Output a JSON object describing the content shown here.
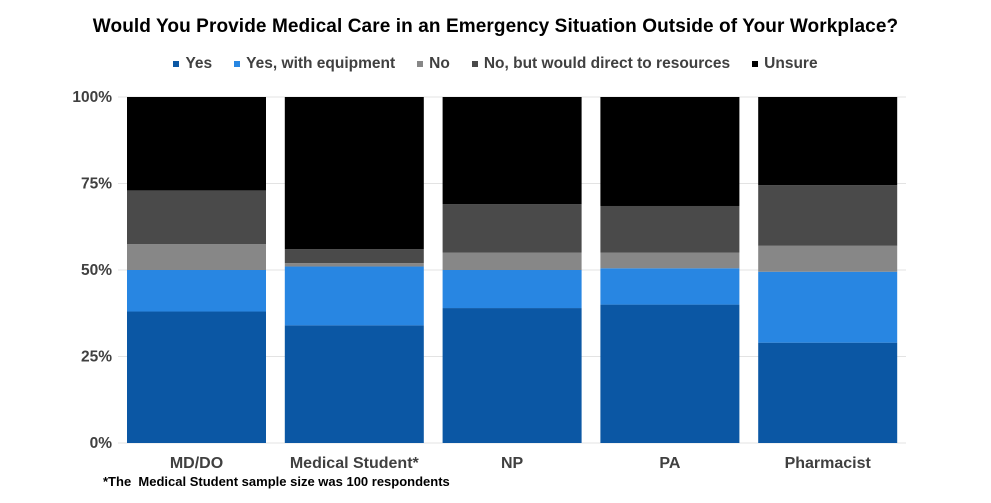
{
  "chart_data": {
    "type": "bar",
    "stacked": true,
    "normalized": true,
    "title": "Would You Provide Medical Care in an Emergency Situation Outside of Your Workplace?",
    "xlabel": "",
    "ylabel": "",
    "ylim": [
      0,
      100
    ],
    "yticks": [
      "0%",
      "25%",
      "50%",
      "75%",
      "100%"
    ],
    "grid": true,
    "legend_position": "top",
    "categories": [
      "MD/DO",
      "Medical Student*",
      "NP",
      "PA",
      "Pharmacist"
    ],
    "series": [
      {
        "name": "Yes",
        "color": "#0b57a4",
        "values": [
          38,
          34,
          39,
          40,
          29
        ]
      },
      {
        "name": "Yes, with equipment",
        "color": "#2886e2",
        "values": [
          12,
          17,
          11,
          10.5,
          20.5
        ]
      },
      {
        "name": "No",
        "color": "#878787",
        "values": [
          7.5,
          1,
          5,
          4.5,
          7.5
        ]
      },
      {
        "name": "No, but would direct to resources",
        "color": "#4a4a4a",
        "values": [
          15.5,
          4,
          14,
          13.5,
          17.5
        ]
      },
      {
        "name": "Unsure",
        "color": "#000000",
        "values": [
          27,
          44,
          31,
          31.5,
          25.5
        ]
      }
    ],
    "footnote": "*The  Medical Student sample size was 100 respondents"
  }
}
